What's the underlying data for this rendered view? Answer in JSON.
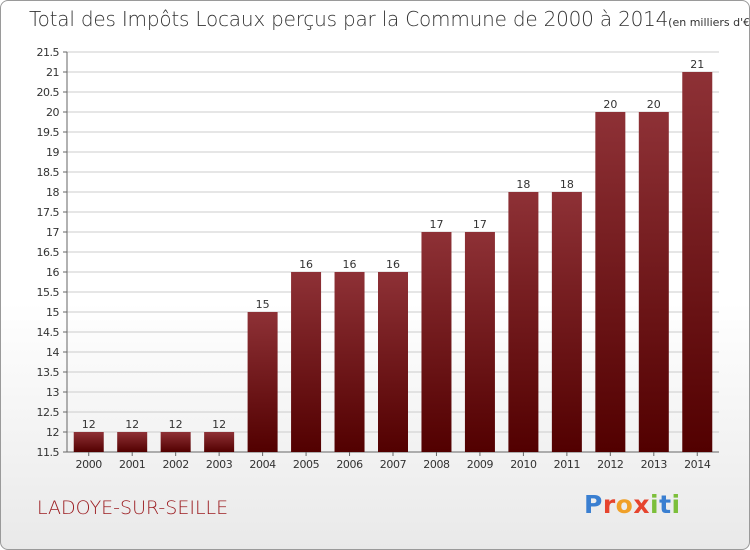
{
  "title": "Total des Impôts Locaux perçus par la Commune de 2000 à 2014",
  "title_unit": "(en milliers d'€)",
  "commune": "LADOYE-SUR-SEILLE",
  "logo_text": "Proxiti",
  "colors": {
    "bar_top": "#8e3136",
    "bar_bottom": "#520000",
    "commune_text": "#9b1b1f",
    "axis": "#666666",
    "grid": "#cccccc"
  },
  "chart_data": {
    "type": "bar",
    "categories": [
      "2000",
      "2001",
      "2002",
      "2003",
      "2004",
      "2005",
      "2006",
      "2007",
      "2008",
      "2009",
      "2010",
      "2011",
      "2012",
      "2013",
      "2014"
    ],
    "values": [
      12,
      12,
      12,
      12,
      15,
      16,
      16,
      16,
      17,
      17,
      18,
      18,
      20,
      20,
      21
    ],
    "data_labels": [
      "12",
      "12",
      "12",
      "12",
      "15",
      "16",
      "16",
      "16",
      "17",
      "17",
      "18",
      "18",
      "20",
      "20",
      "21"
    ],
    "ylim": [
      11.5,
      21.5
    ],
    "yticks": [
      "11.5",
      "12",
      "12.5",
      "13",
      "13.5",
      "14",
      "14.5",
      "15",
      "15.5",
      "16",
      "16.5",
      "17",
      "17.5",
      "18",
      "18.5",
      "19",
      "19.5",
      "20",
      "20.5",
      "21",
      "21.5"
    ],
    "grid": true,
    "xlabel": "",
    "ylabel": ""
  }
}
